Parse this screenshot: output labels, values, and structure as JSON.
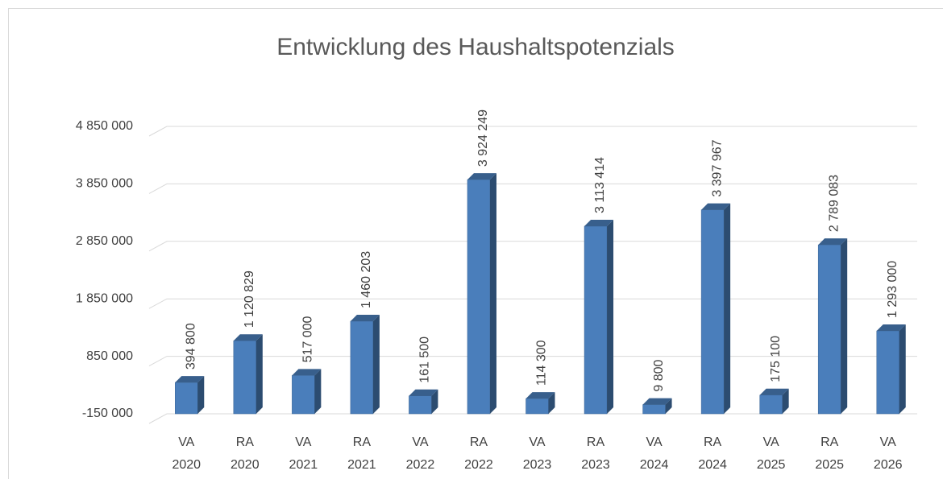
{
  "chart_data": {
    "type": "bar3d",
    "title": "Entwicklung des Haushaltspotenzials",
    "categories": [
      "VA 2020",
      "RA 2020",
      "VA 2021",
      "RA 2021",
      "VA 2022",
      "RA 2022",
      "VA 2023",
      "RA 2023",
      "VA 2024",
      "RA 2024",
      "VA 2025",
      "RA 2025",
      "VA 2026"
    ],
    "values": [
      394800,
      1120829,
      517000,
      1460203,
      161500,
      3924249,
      114300,
      3113414,
      9800,
      3397967,
      175100,
      2789083,
      1293000
    ],
    "value_labels": [
      "394 800",
      "1 120 829",
      "517 000",
      "1 460 203",
      "161 500",
      "3 924 249",
      "114 300",
      "3 113 414",
      "9 800",
      "3 397 967",
      "175 100",
      "2 789 083",
      "1 293 000"
    ],
    "color": "#4a7ebb",
    "ylim": [
      -150000,
      4850000
    ],
    "yticks": [
      {
        "value": -150000,
        "label": "-150 000"
      },
      {
        "value": 850000,
        "label": "850 000"
      },
      {
        "value": 1850000,
        "label": "1 850 000"
      },
      {
        "value": 2850000,
        "label": "2 850 000"
      },
      {
        "value": 3850000,
        "label": "3 850 000"
      },
      {
        "value": 4850000,
        "label": "4 850 000"
      }
    ],
    "grid": true
  }
}
